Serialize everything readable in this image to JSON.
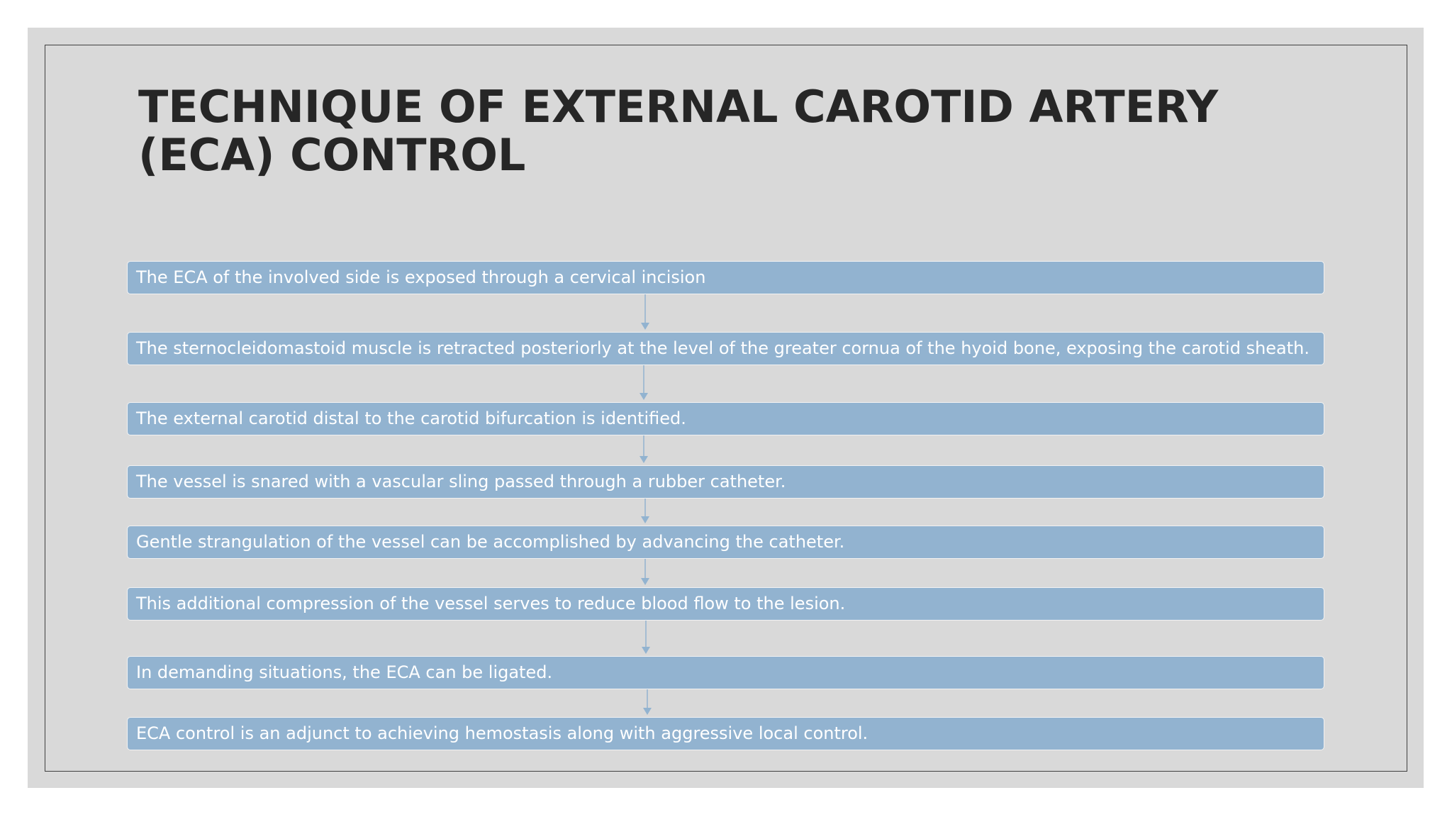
{
  "title": "TECHNIQUE OF EXTERNAL CAROTID ARTERY (ECA) CONTROL",
  "steps": [
    "The ECA of the involved side is exposed through a cervical incision",
    "The sternocleidomastoid muscle is retracted posteriorly at the level of the greater cornua of the hyoid bone, exposing the carotid sheath.",
    "The external carotid distal to the carotid bifurcation is identified.",
    "The vessel is snared with a vascular sling passed through a rubber catheter.",
    "Gentle strangulation of the vessel can be accomplished by advancing the catheter.",
    "This additional compression of the vessel serves to reduce blood flow to the lesion.",
    "In demanding situations, the ECA can be ligated.",
    "ECA control is an adjunct to achieving hemostasis along with aggressive local control."
  ]
}
